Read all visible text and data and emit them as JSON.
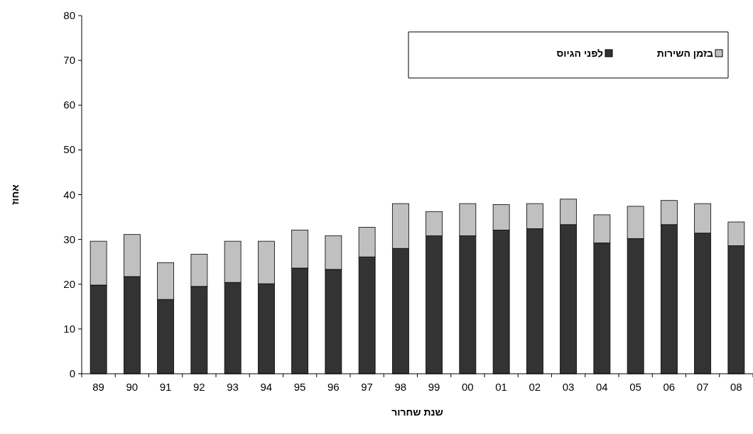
{
  "chart_data": {
    "type": "bar",
    "stacked": true,
    "xlabel": "שנת שחרור",
    "ylabel": "אחוז",
    "categories": [
      "89",
      "90",
      "91",
      "92",
      "93",
      "94",
      "95",
      "96",
      "97",
      "98",
      "99",
      "00",
      "01",
      "02",
      "03",
      "04",
      "05",
      "06",
      "07",
      "08"
    ],
    "series": [
      {
        "name": "לפני הגיוס",
        "color": "#333333",
        "values": [
          19.8,
          21.7,
          16.6,
          19.5,
          20.4,
          20.1,
          23.6,
          23.3,
          26.1,
          28.0,
          30.8,
          30.8,
          32.1,
          32.4,
          33.3,
          29.2,
          30.2,
          33.3,
          31.4,
          28.6
        ]
      },
      {
        "name": "בזמן השירות",
        "color": "#c0c0c0",
        "values": [
          9.8,
          9.4,
          8.2,
          7.2,
          9.2,
          9.5,
          8.5,
          7.5,
          6.6,
          10.0,
          5.4,
          7.2,
          5.7,
          5.6,
          5.7,
          6.3,
          7.2,
          5.4,
          6.6,
          5.3
        ]
      }
    ],
    "ylim": [
      0,
      80
    ],
    "yticks": [
      0,
      10,
      20,
      30,
      40,
      50,
      60,
      70,
      80
    ],
    "legend": "top right"
  }
}
